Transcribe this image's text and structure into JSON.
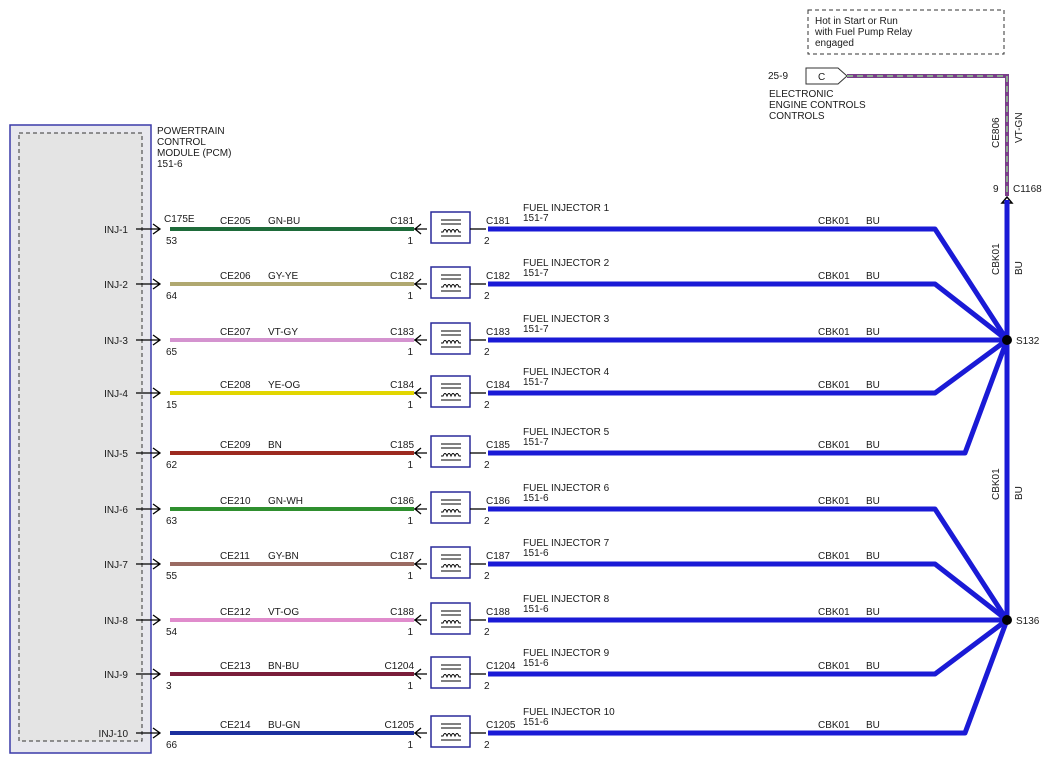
{
  "module": {
    "name_lines": [
      "POWERTRAIN",
      "CONTROL",
      "MODULE (PCM)",
      "151-6"
    ],
    "connector": "C175E"
  },
  "hot_note": {
    "lines": [
      "Hot in Start or Run",
      "with Fuel Pump Relay",
      "engaged"
    ]
  },
  "eec": {
    "page": "25-9",
    "pin": "C",
    "lines": [
      "ELECTRONIC",
      "ENGINE CONTROLS",
      "CONTROLS"
    ]
  },
  "supply": {
    "circuit": "CE806",
    "color_label": "VT-GN",
    "pin": "9",
    "connector": "C1168",
    "wire_colors": [
      "#7a3e8a",
      "#8fcf8f"
    ]
  },
  "trunk": [
    {
      "circuit": "CBK01",
      "color_label": "BU"
    },
    {
      "circuit": "CBK01",
      "color_label": "BU"
    }
  ],
  "splices": [
    {
      "label": "S132"
    },
    {
      "label": "S136"
    }
  ],
  "ground_circuit": {
    "circuit": "CBK01",
    "color_label": "BU",
    "wire_color": "#1a1ad6"
  },
  "rows": [
    {
      "inj": "INJ-1",
      "pin": "53",
      "circuit": "CE205",
      "color_label": "GN-BU",
      "wire_color": "#1e6b3a",
      "conn": "C181",
      "pin_in": "1",
      "pin_out": "2",
      "name": "FUEL INJECTOR 1",
      "page": "151-7"
    },
    {
      "inj": "INJ-2",
      "pin": "64",
      "circuit": "CE206",
      "color_label": "GY-YE",
      "wire_color": "#b0a870",
      "conn": "C182",
      "pin_in": "1",
      "pin_out": "2",
      "name": "FUEL INJECTOR 2",
      "page": "151-7"
    },
    {
      "inj": "INJ-3",
      "pin": "65",
      "circuit": "CE207",
      "color_label": "VT-GY",
      "wire_color": "#d493cf",
      "conn": "C183",
      "pin_in": "1",
      "pin_out": "2",
      "name": "FUEL INJECTOR 3",
      "page": "151-7"
    },
    {
      "inj": "INJ-4",
      "pin": "15",
      "circuit": "CE208",
      "color_label": "YE-OG",
      "wire_color": "#e2d600",
      "conn": "C184",
      "pin_in": "1",
      "pin_out": "2",
      "name": "FUEL INJECTOR 4",
      "page": "151-7"
    },
    {
      "inj": "INJ-5",
      "pin": "62",
      "circuit": "CE209",
      "color_label": "BN",
      "wire_color": "#9c2a20",
      "conn": "C185",
      "pin_in": "1",
      "pin_out": "2",
      "name": "FUEL INJECTOR 5",
      "page": "151-7"
    },
    {
      "inj": "INJ-6",
      "pin": "63",
      "circuit": "CE210",
      "color_label": "GN-WH",
      "wire_color": "#2f8f2f",
      "conn": "C186",
      "pin_in": "1",
      "pin_out": "2",
      "name": "FUEL INJECTOR 6",
      "page": "151-6"
    },
    {
      "inj": "INJ-7",
      "pin": "55",
      "circuit": "CE211",
      "color_label": "GY-BN",
      "wire_color": "#9a6b62",
      "conn": "C187",
      "pin_in": "1",
      "pin_out": "2",
      "name": "FUEL INJECTOR 7",
      "page": "151-6"
    },
    {
      "inj": "INJ-8",
      "pin": "54",
      "circuit": "CE212",
      "color_label": "VT-OG",
      "wire_color": "#e08ccc",
      "conn": "C188",
      "pin_in": "1",
      "pin_out": "2",
      "name": "FUEL INJECTOR 8",
      "page": "151-6"
    },
    {
      "inj": "INJ-9",
      "pin": "3",
      "circuit": "CE213",
      "color_label": "BN-BU",
      "wire_color": "#7a1d3a",
      "conn": "C1204",
      "pin_in": "1",
      "pin_out": "2",
      "name": "FUEL INJECTOR 9",
      "page": "151-6"
    },
    {
      "inj": "INJ-10",
      "pin": "66",
      "circuit": "CE214",
      "color_label": "BU-GN",
      "wire_color": "#1c2f9e",
      "conn": "C1205",
      "pin_in": "1",
      "pin_out": "2",
      "name": "FUEL INJECTOR 10",
      "page": "151-6"
    }
  ]
}
